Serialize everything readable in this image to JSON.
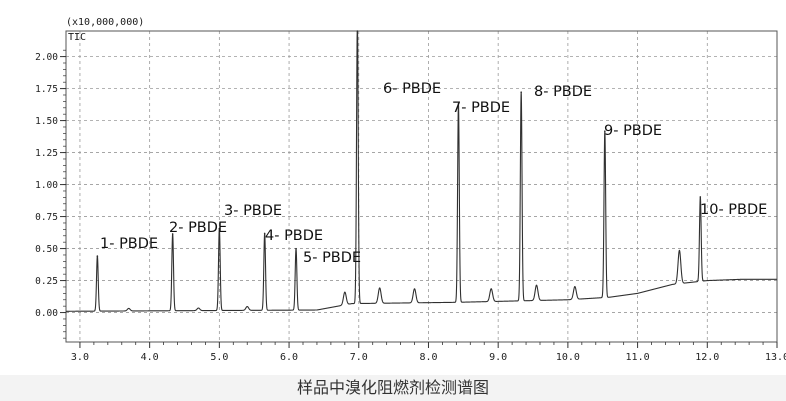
{
  "chart_data": {
    "type": "line",
    "title": "",
    "xlabel": "",
    "ylabel": "",
    "multiplier_label": "(x10,000,000)",
    "channel_label": "TIC",
    "xlim": [
      2.8,
      13.0
    ],
    "ylim": [
      -0.23,
      2.2
    ],
    "x_ticks": [
      3.0,
      4.0,
      5.0,
      6.0,
      7.0,
      8.0,
      9.0,
      10.0,
      11.0,
      12.0,
      13.0
    ],
    "x_tick_labels": [
      "3.0",
      "4.0",
      "5.0",
      "6.0",
      "7.0",
      "8.0",
      "9.0",
      "10.0",
      "11.0",
      "12.0",
      "13.0"
    ],
    "y_ticks": [
      0.0,
      0.25,
      0.5,
      0.75,
      1.0,
      1.25,
      1.5,
      1.75,
      2.0
    ],
    "y_tick_labels": [
      "0.00",
      "0.25",
      "0.50",
      "0.75",
      "1.00",
      "1.25",
      "1.50",
      "1.75",
      "2.00"
    ],
    "grid": true,
    "baseline": [
      {
        "x": 2.8,
        "y": 0.01
      },
      {
        "x": 6.4,
        "y": 0.02
      },
      {
        "x": 6.9,
        "y": 0.07
      },
      {
        "x": 8.4,
        "y": 0.08
      },
      {
        "x": 10.0,
        "y": 0.1
      },
      {
        "x": 10.6,
        "y": 0.12
      },
      {
        "x": 11.0,
        "y": 0.15
      },
      {
        "x": 11.5,
        "y": 0.22
      },
      {
        "x": 12.0,
        "y": 0.25
      },
      {
        "x": 12.5,
        "y": 0.26
      },
      {
        "x": 13.0,
        "y": 0.26
      }
    ],
    "peaks": [
      {
        "x": 3.25,
        "height": 0.43,
        "label": "1- PBDE"
      },
      {
        "x": 4.33,
        "height": 0.6,
        "label": "2- PBDE"
      },
      {
        "x": 5.0,
        "height": 0.64,
        "label": "3- PBDE"
      },
      {
        "x": 5.65,
        "height": 0.6,
        "label": "4- PBDE"
      },
      {
        "x": 6.1,
        "height": 0.48,
        "label": "5- PBDE"
      },
      {
        "x": 6.98,
        "height": 2.2,
        "label": "6- PBDE"
      },
      {
        "x": 8.43,
        "height": 1.55,
        "label": "7- PBDE"
      },
      {
        "x": 9.33,
        "height": 1.63,
        "label": "8- PBDE"
      },
      {
        "x": 10.53,
        "height": 1.3,
        "label": "9- PBDE"
      },
      {
        "x": 11.9,
        "height": 0.66,
        "label": "10- PBDE"
      }
    ],
    "minor_peaks": [
      {
        "x": 3.7,
        "height": 0.02
      },
      {
        "x": 4.7,
        "height": 0.02
      },
      {
        "x": 5.4,
        "height": 0.03
      },
      {
        "x": 6.8,
        "height": 0.1
      },
      {
        "x": 7.3,
        "height": 0.12
      },
      {
        "x": 7.8,
        "height": 0.11
      },
      {
        "x": 8.9,
        "height": 0.1
      },
      {
        "x": 9.55,
        "height": 0.12
      },
      {
        "x": 10.1,
        "height": 0.1
      },
      {
        "x": 11.6,
        "height": 0.26
      }
    ],
    "line_color": "#303030"
  },
  "caption": "样品中溴化阻燃剂检测谱图"
}
